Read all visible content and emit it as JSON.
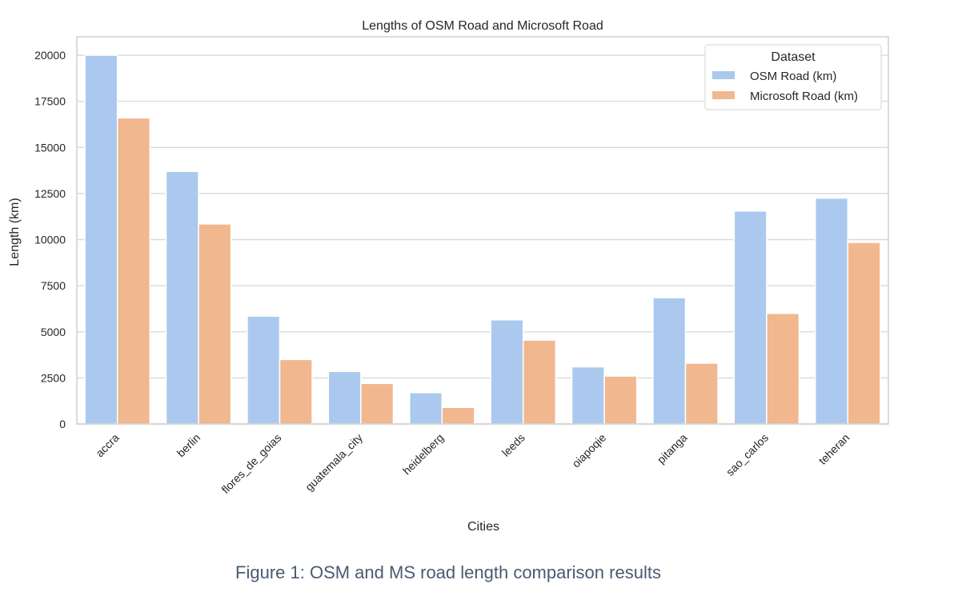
{
  "chart_data": {
    "type": "bar",
    "title": "Lengths of OSM Road and Microsoft Road",
    "xlabel": "Cities",
    "ylabel": "Length (km)",
    "ylim": [
      0,
      21000
    ],
    "yticks": [
      0,
      2500,
      5000,
      7500,
      10000,
      12500,
      15000,
      17500,
      20000
    ],
    "grid": true,
    "legend_title": "Dataset",
    "legend_position": "top-right",
    "categories": [
      "accra",
      "berlin",
      "flores_de_goias",
      "guatemala_city",
      "heidelberg",
      "leeds",
      "oiapoqie",
      "pitanga",
      "sao_carlos",
      "teheran"
    ],
    "series": [
      {
        "name": "OSM Road (km)",
        "color": "#abc9ee",
        "values": [
          20000,
          13700,
          5850,
          2850,
          1700,
          5650,
          3100,
          6850,
          11550,
          12250
        ]
      },
      {
        "name": "Microsoft Road (km)",
        "color": "#f1b78e",
        "values": [
          16600,
          10850,
          3500,
          2200,
          900,
          4550,
          2600,
          3300,
          6000,
          9850
        ]
      }
    ]
  },
  "caption": "Figure 1: OSM and MS road length comparison results"
}
